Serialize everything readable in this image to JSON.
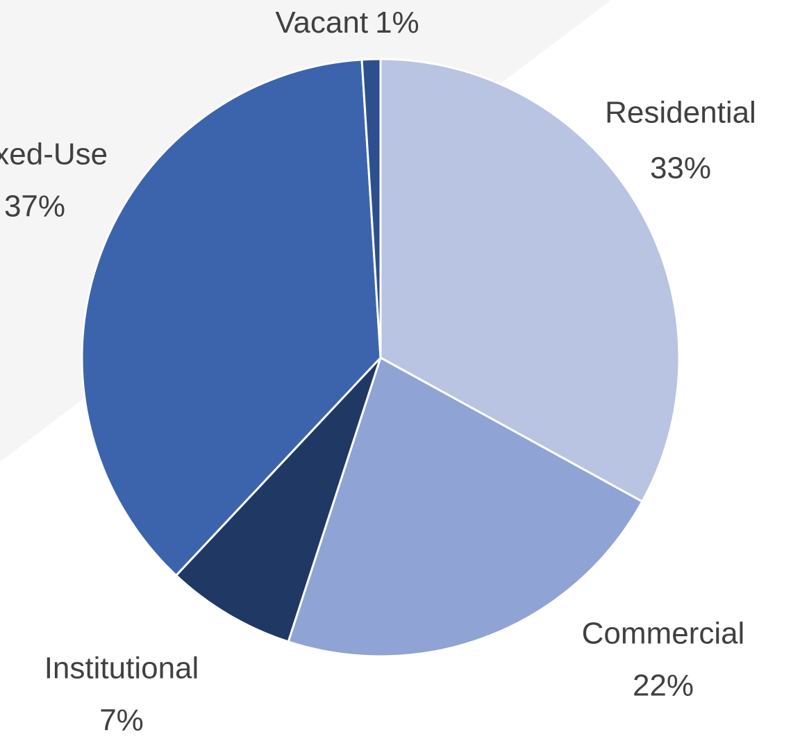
{
  "chart_data": {
    "type": "pie",
    "categories": [
      "Residential",
      "Commercial",
      "Institutional",
      "Mixed-Use",
      "Vacant"
    ],
    "values": [
      33,
      22,
      7,
      37,
      1
    ],
    "value_labels": [
      "33%",
      "22%",
      "7%",
      "37%",
      "1%"
    ],
    "colors": [
      "#b9c3e2",
      "#8fa3d4",
      "#203864",
      "#3c64ad",
      "#2e4f8e"
    ]
  }
}
